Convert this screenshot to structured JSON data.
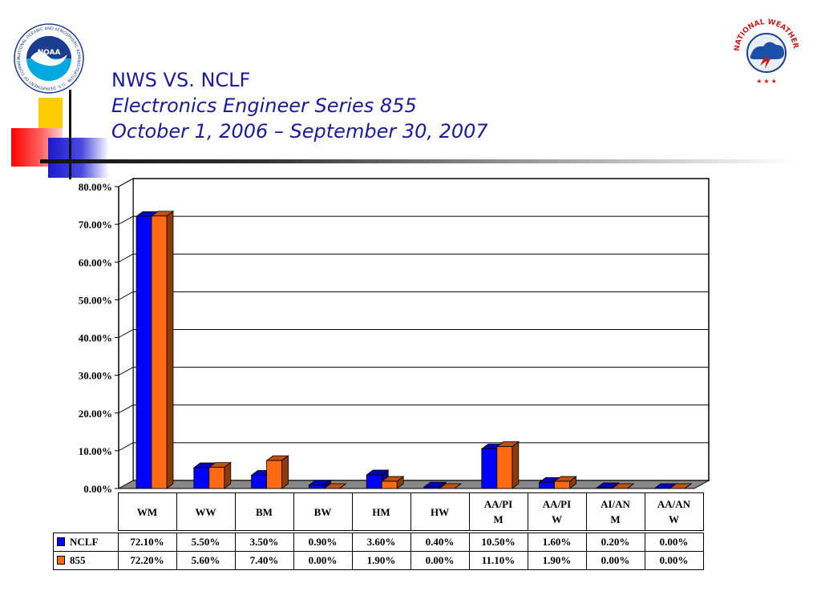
{
  "header": {
    "title_line1": "NWS VS. NCLF",
    "title_line2": "Electronics Engineer Series 855",
    "title_line3": "October 1, 2006 – September 30, 2007"
  },
  "logos": {
    "left": {
      "name": "noaa-logo",
      "text": "NOAA",
      "ring_text": "NATIONAL OCEANIC AND ATMOSPHERIC ADMINISTRATION · U.S. DEPARTMENT OF COMMERCE"
    },
    "right": {
      "name": "nws-logo",
      "ring_text": "NATIONAL WEATHER SERVICE"
    }
  },
  "colors": {
    "series_ncl": "#0000ff",
    "series_855": "#ff6a13",
    "title": "#1a1a9c"
  },
  "chart_data": {
    "type": "bar",
    "style": "3d-clustered",
    "categories": [
      "WM",
      "WW",
      "BM",
      "BW",
      "HM",
      "HW",
      "AA/PIM",
      "AA/PIW",
      "AI/ANM",
      "AA/ANW"
    ],
    "category_labels": [
      [
        "WM"
      ],
      [
        "WW"
      ],
      [
        "BM"
      ],
      [
        "BW"
      ],
      [
        "HM"
      ],
      [
        "HW"
      ],
      [
        "AA/PI",
        "M"
      ],
      [
        "AA/PI",
        "W"
      ],
      [
        "AI/AN",
        "M"
      ],
      [
        "AA/AN",
        "W"
      ]
    ],
    "series": [
      {
        "name": "NCLF",
        "color": "#0000ff",
        "values": [
          72.1,
          5.5,
          3.5,
          0.9,
          3.6,
          0.4,
          10.5,
          1.6,
          0.2,
          0.0
        ],
        "labels": [
          "72.10%",
          "5.50%",
          "3.50%",
          "0.90%",
          "3.60%",
          "0.40%",
          "10.50%",
          "1.60%",
          "0.20%",
          "0.00%"
        ]
      },
      {
        "name": "855",
        "color": "#ff6a13",
        "values": [
          72.2,
          5.6,
          7.4,
          0.0,
          1.9,
          0.0,
          11.1,
          1.9,
          0.0,
          0.0
        ],
        "labels": [
          "72.20%",
          "5.60%",
          "7.40%",
          "0.00%",
          "1.90%",
          "0.00%",
          "11.10%",
          "1.90%",
          "0.00%",
          "0.00%"
        ]
      }
    ],
    "yticks": [
      "0.00%",
      "10.00%",
      "20.00%",
      "30.00%",
      "40.00%",
      "50.00%",
      "60.00%",
      "70.00%",
      "80.00%"
    ],
    "ylim": [
      0,
      80
    ],
    "grid": true,
    "legend": "data-table"
  }
}
